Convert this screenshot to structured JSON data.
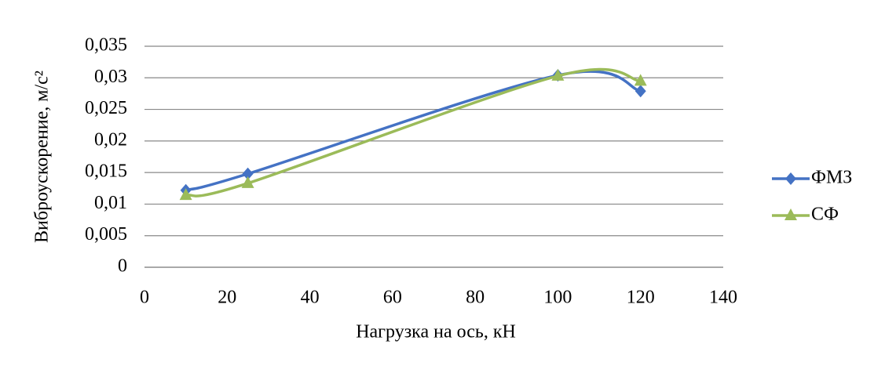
{
  "chart_data": {
    "type": "line",
    "x_label": "Нагрузка на ось, кН",
    "y_label": "Виброускорение, м/с²",
    "series": [
      {
        "name": "ФМЗ",
        "color": "#4472c4",
        "marker": "diamond",
        "x": [
          10,
          25,
          100,
          120
        ],
        "values": [
          0.0122,
          0.0148,
          0.0304,
          0.0279
        ]
      },
      {
        "name": "СФ",
        "color": "#9bbb59",
        "marker": "triangle",
        "x": [
          10,
          25,
          100,
          120
        ],
        "values": [
          0.0114,
          0.0133,
          0.0303,
          0.0295
        ]
      }
    ],
    "xlim": [
      0,
      140
    ],
    "xticks": [
      0,
      20,
      40,
      60,
      80,
      100,
      120,
      140
    ],
    "ylim": [
      0,
      0.035
    ],
    "yticks": [
      0,
      {
        "value": 0.005,
        "label": "0,005"
      },
      {
        "value": 0.01,
        "label": "0,01"
      },
      {
        "value": 0.015,
        "label": "0,015"
      },
      {
        "value": 0.02,
        "label": "0,02"
      },
      {
        "value": 0.025,
        "label": "0,025"
      },
      {
        "value": 0.03,
        "label": "0,03"
      },
      {
        "value": 0.035,
        "label": "0,035"
      }
    ],
    "grid": true,
    "smooth": true,
    "legend": "right"
  }
}
